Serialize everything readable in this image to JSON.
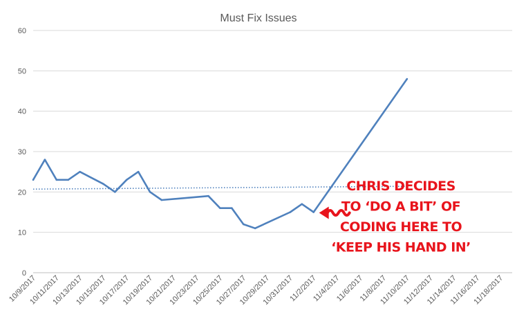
{
  "chart_data": {
    "type": "line",
    "title": "Must Fix Issues",
    "xlabel": "",
    "ylabel": "",
    "ylim": [
      0,
      60
    ],
    "yticks": [
      0,
      10,
      20,
      30,
      40,
      50,
      60
    ],
    "grid": true,
    "legend": "none",
    "x_tick_labels": [
      "10/9/2017",
      "10/11/2017",
      "10/13/2017",
      "10/15/2017",
      "10/17/2017",
      "10/19/2017",
      "10/21/2017",
      "10/23/2017",
      "10/25/2017",
      "10/27/2017",
      "10/29/2017",
      "10/31/2017",
      "11/2/2017",
      "11/4/2017",
      "11/6/2017",
      "11/8/2017",
      "11/10/2017",
      "11/12/2017",
      "11/14/2017",
      "11/16/2017",
      "11/18/2017"
    ],
    "series": [
      {
        "color": "#4f81bd",
        "points": [
          {
            "x": "10/9/2017",
            "y": 23
          },
          {
            "x": "10/10/2017",
            "y": 28
          },
          {
            "x": "10/11/2017",
            "y": 23
          },
          {
            "x": "10/12/2017",
            "y": 23
          },
          {
            "x": "10/13/2017",
            "y": 25
          },
          {
            "x": "10/15/2017",
            "y": 22
          },
          {
            "x": "10/16/2017",
            "y": 20
          },
          {
            "x": "10/17/2017",
            "y": 23
          },
          {
            "x": "10/18/2017",
            "y": 25
          },
          {
            "x": "10/19/2017",
            "y": 20
          },
          {
            "x": "10/20/2017",
            "y": 18
          },
          {
            "x": "10/24/2017",
            "y": 19
          },
          {
            "x": "10/25/2017",
            "y": 16
          },
          {
            "x": "10/26/2017",
            "y": 16
          },
          {
            "x": "10/27/2017",
            "y": 12
          },
          {
            "x": "10/28/2017",
            "y": 11
          },
          {
            "x": "10/31/2017",
            "y": 15
          },
          {
            "x": "11/1/2017",
            "y": 17
          },
          {
            "x": "11/2/2017",
            "y": 15
          },
          {
            "x": "11/10/2017",
            "y": 48
          }
        ]
      }
    ],
    "trendline": {
      "style": "dotted",
      "color": "#4f81bd",
      "start": {
        "x": "10/9/2017",
        "y": 20.7
      },
      "end": {
        "x": "11/10/2017",
        "y": 21.4
      }
    },
    "annotation": {
      "lines": [
        "CHRIS DECIDES",
        "TO ‘DO A BIT’ OF",
        "CODING HERE TO",
        "‘KEEP HIS HAND IN’"
      ],
      "color": "#e8141c",
      "arrow_target": {
        "x": "11/2/2017",
        "y": 15
      }
    }
  }
}
